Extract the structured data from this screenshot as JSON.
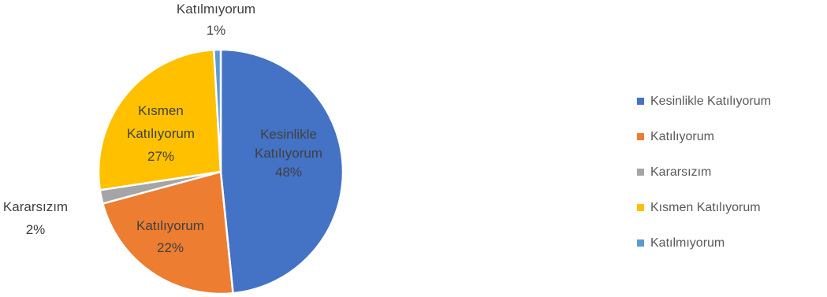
{
  "chart_data": {
    "type": "pie",
    "title": "",
    "start_angle_deg": 0,
    "direction": "clockwise",
    "legend_position": "right",
    "slices": [
      {
        "label": "Kesinlikle Katılıyorum",
        "label_lines": [
          "Kesinlikle",
          "Katılıyorum"
        ],
        "percent_text": "48%",
        "value": 48.4,
        "color": "#4472C4",
        "label_color": "#404040",
        "label_placement": "inside"
      },
      {
        "label": "Katılıyorum",
        "label_lines": [
          "Katılıyorum"
        ],
        "percent_text": "22%",
        "value": 22.4,
        "color": "#ED7D31",
        "label_color": "#404040",
        "label_placement": "inside"
      },
      {
        "label": "Kararsızım",
        "label_lines": [
          "Kararsızım"
        ],
        "percent_text": "2%",
        "value": 1.8,
        "color": "#A5A5A5",
        "label_color": "#404040",
        "label_placement": "outside"
      },
      {
        "label": "Kısmen Katılıyorum",
        "label_lines": [
          "Kısmen",
          "Katılıyorum"
        ],
        "percent_text": "27%",
        "value": 26.5,
        "color": "#FFC000",
        "label_color": "#404040",
        "label_placement": "inside"
      },
      {
        "label": "Katılmıyorum",
        "label_lines": [
          "Katılmıyorum"
        ],
        "percent_text": "1%",
        "value": 0.9,
        "color": "#5B9BD5",
        "label_color": "#404040",
        "label_placement": "outside"
      }
    ]
  }
}
